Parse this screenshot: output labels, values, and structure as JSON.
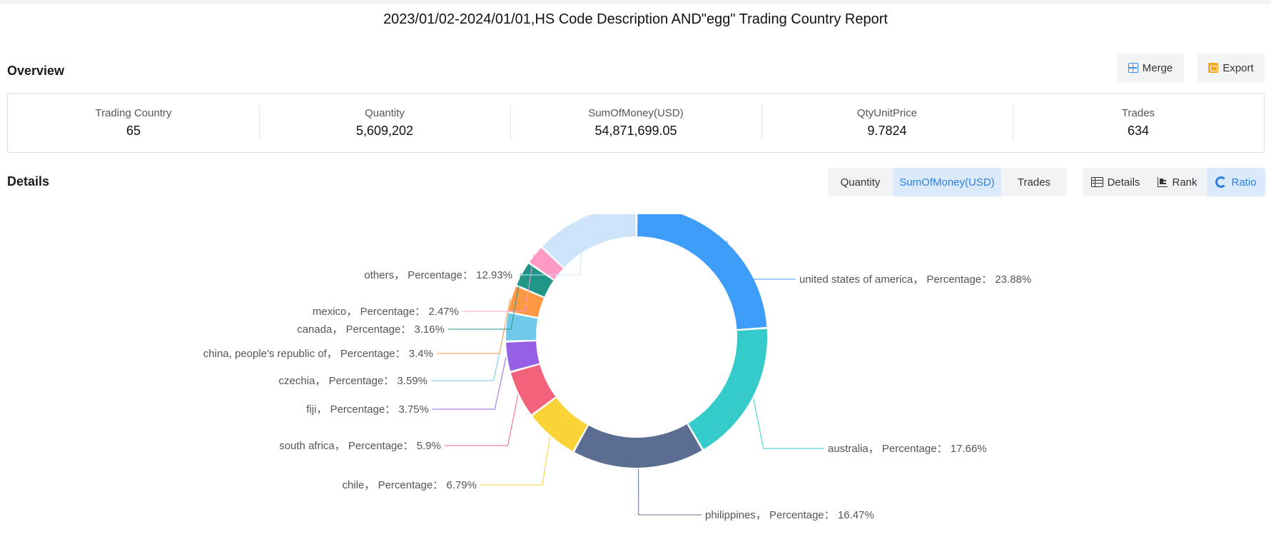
{
  "title": "2023/01/02-2024/01/01,HS Code Description AND\"egg\" Trading Country Report",
  "overview": {
    "title": "Overview",
    "merge_label": "Merge",
    "export_label": "Export",
    "stats": [
      {
        "label": "Trading Country",
        "value": "65"
      },
      {
        "label": "Quantity",
        "value": "5,609,202"
      },
      {
        "label": "SumOfMoney(USD)",
        "value": "54,871,699.05"
      },
      {
        "label": "QtyUnitPrice",
        "value": "9.7824"
      },
      {
        "label": "Trades",
        "value": "634"
      }
    ]
  },
  "details": {
    "title": "Details",
    "metric_tabs": [
      {
        "label": "Quantity",
        "active": false
      },
      {
        "label": "SumOfMoney(USD)",
        "active": true
      },
      {
        "label": "Trades",
        "active": false
      }
    ],
    "view_tabs": [
      {
        "label": "Details",
        "icon": "table-icon",
        "active": false
      },
      {
        "label": "Rank",
        "icon": "rank-icon",
        "active": false
      },
      {
        "label": "Ratio",
        "icon": "ratio-icon",
        "active": true
      }
    ]
  },
  "chart_data": {
    "type": "pie",
    "donut": true,
    "label_format": "{name}， Percentage： {value}%",
    "slices": [
      {
        "name": "united states of america",
        "value": 23.88,
        "color": "#3d9df8"
      },
      {
        "name": "australia",
        "value": 17.66,
        "color": "#36cbcb"
      },
      {
        "name": "philippines",
        "value": 16.47,
        "color": "#5b6e91"
      },
      {
        "name": "chile",
        "value": 6.79,
        "color": "#fad337"
      },
      {
        "name": "south africa",
        "value": 5.9,
        "color": "#f2637b"
      },
      {
        "name": "fiji",
        "value": 3.75,
        "color": "#975fe4"
      },
      {
        "name": "czechia",
        "value": 3.59,
        "color": "#6fc9eb"
      },
      {
        "name": "china, people's republic of",
        "value": 3.4,
        "color": "#ff9845"
      },
      {
        "name": "canada",
        "value": 3.16,
        "color": "#1f9688"
      },
      {
        "name": "mexico",
        "value": 2.47,
        "color": "#ff9ac4"
      },
      {
        "name": "others",
        "value": 12.93,
        "color": "#cde4fb"
      }
    ]
  }
}
